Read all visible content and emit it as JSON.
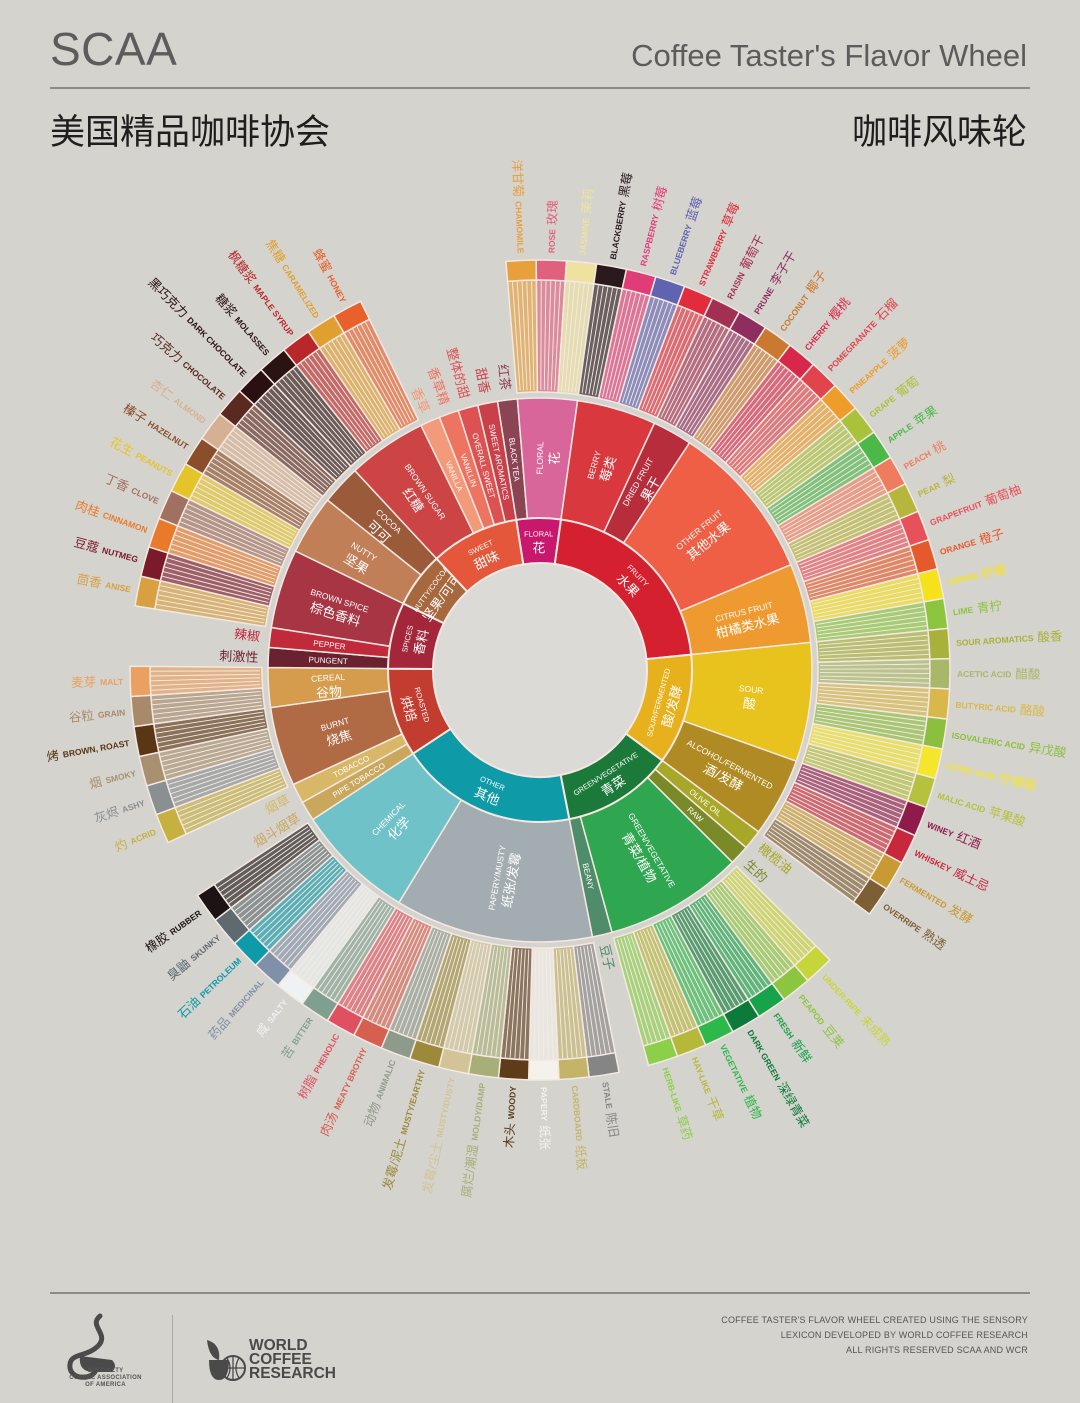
{
  "header": {
    "title_en": "SCAA",
    "subtitle_en": "Coffee Taster's Flavor Wheel",
    "title_zh": "美国精品咖啡协会",
    "subtitle_zh": "咖啡风味轮"
  },
  "footer": {
    "credit": [
      "COFFEE TASTER'S FLAVOR WHEEL CREATED USING THE SENSORY",
      "LEXICON DEVELOPED BY WORLD COFFEE RESEARCH",
      "ALL RIGHTS RESERVED SCAA AND WCR"
    ],
    "sca_logo": [
      "SPECIALTY",
      "COFFEE ASSOCIATION",
      "OF AMERICA"
    ],
    "wcr_logo": [
      "WORLD",
      "COFFEE",
      "RESEARCH"
    ]
  },
  "colors": {
    "background": "#d5d3ce",
    "center": "#dcdad6",
    "separator": "#f4e8e2"
  },
  "wheel": {
    "categories": [
      {
        "en": "FLORAL",
        "zh": "花",
        "c": "#c8176d",
        "subs": [
          {
            "en": "BLACK TEA",
            "zh": "红茶",
            "c": "#8a4454",
            "leaves": []
          },
          {
            "en": "FLORAL",
            "zh": "花",
            "c": "#d9669a",
            "leaves": [
              {
                "en": "CHAMOMILE",
                "zh": "洋甘菊",
                "c": "#e8a03c"
              },
              {
                "en": "ROSE",
                "zh": "玫瑰",
                "c": "#e0607e"
              },
              {
                "en": "JASMINE",
                "zh": "茉莉",
                "c": "#efe2a0"
              }
            ]
          }
        ]
      },
      {
        "en": "FRUITY",
        "zh": "水果",
        "c": "#d4202f",
        "subs": [
          {
            "en": "BERRY",
            "zh": "莓类",
            "c": "#d8383e",
            "leaves": [
              {
                "en": "BLACKBERRY",
                "zh": "黑莓",
                "c": "#2a1a1e"
              },
              {
                "en": "RASPBERRY",
                "zh": "树莓",
                "c": "#e03c78"
              },
              {
                "en": "BLUEBERRY",
                "zh": "蓝莓",
                "c": "#5f63b0"
              },
              {
                "en": "STRAWBERRY",
                "zh": "草莓",
                "c": "#e02c3c"
              }
            ]
          },
          {
            "en": "DRIED FRUIT",
            "zh": "果干",
            "c": "#b72d3b",
            "leaves": [
              {
                "en": "RAISIN",
                "zh": "葡萄干",
                "c": "#a23052"
              },
              {
                "en": "PRUNE",
                "zh": "李子干",
                "c": "#8e2e5e"
              }
            ]
          },
          {
            "en": "OTHER FRUIT",
            "zh": "其他水果",
            "c": "#ee5f45",
            "leaves": [
              {
                "en": "COCONUT",
                "zh": "椰子",
                "c": "#c97a30"
              },
              {
                "en": "CHERRY",
                "zh": "樱桃",
                "c": "#d8284a"
              },
              {
                "en": "POMEGRANATE",
                "zh": "石榴",
                "c": "#e0444c"
              },
              {
                "en": "PINEAPPLE",
                "zh": "菠萝",
                "c": "#ee9c2a"
              },
              {
                "en": "GRAPE",
                "zh": "葡萄",
                "c": "#a9c23a"
              },
              {
                "en": "APPLE",
                "zh": "苹果",
                "c": "#4cb848"
              },
              {
                "en": "PEACH",
                "zh": "桃",
                "c": "#f07c60"
              },
              {
                "en": "PEAR",
                "zh": "梨",
                "c": "#b7b63c"
              }
            ]
          },
          {
            "en": "CITRUS FRUIT",
            "zh": "柑橘类水果",
            "c": "#ef9a30",
            "leaves": [
              {
                "en": "GRAPEFRUIT",
                "zh": "葡萄柚",
                "c": "#e8505a"
              },
              {
                "en": "ORANGE",
                "zh": "橙子",
                "c": "#e45a2c"
              },
              {
                "en": "LEMON",
                "zh": "柠檬",
                "c": "#f6e21a"
              },
              {
                "en": "LIME",
                "zh": "青柠",
                "c": "#8cc63f"
              }
            ]
          }
        ]
      },
      {
        "en": "SOUR/FERMENTED",
        "zh": "酸/发酵",
        "c": "#e6b11c",
        "subs": [
          {
            "en": "SOUR",
            "zh": "酸",
            "c": "#e8c21d",
            "leaves": [
              {
                "en": "SOUR AROMATICS",
                "zh": "酸香",
                "c": "#a8b23a"
              },
              {
                "en": "ACETIC ACID",
                "zh": "醋酸",
                "c": "#a9b868"
              },
              {
                "en": "BUTYRIC ACID",
                "zh": "酪酸",
                "c": "#d8b84a"
              },
              {
                "en": "ISOVALERIC ACID",
                "zh": "异戊酸",
                "c": "#8cbf3e"
              },
              {
                "en": "CITRIC ACID",
                "zh": "柠檬酸",
                "c": "#f4e62a"
              },
              {
                "en": "MALIC ACID",
                "zh": "苹果酸",
                "c": "#b4c23e"
              }
            ]
          },
          {
            "en": "ALCOHOL/FERMENTED",
            "zh": "酒/发酵",
            "c": "#b08a22",
            "leaves": [
              {
                "en": "WINEY",
                "zh": "红酒",
                "c": "#8e1b4c"
              },
              {
                "en": "WHISKEY",
                "zh": "威士忌",
                "c": "#c8283c"
              },
              {
                "en": "FERMENTED",
                "zh": "发酵",
                "c": "#c89a32"
              },
              {
                "en": "OVERRIPE",
                "zh": "熟透",
                "c": "#7d5f36"
              }
            ]
          }
        ]
      },
      {
        "en": "GREEN/VEGETATIVE",
        "zh": "青菜",
        "c": "#1b7a3a",
        "subs": [
          {
            "en": "OLIVE OIL",
            "zh": "橄榄油",
            "c": "#a8a828",
            "leaves": []
          },
          {
            "en": "RAW",
            "zh": "生的",
            "c": "#7a8a28",
            "leaves": []
          },
          {
            "en": "GREEN/VEGETATIVE",
            "zh": "青菜/植物",
            "c": "#2fa650",
            "leaves": [
              {
                "en": "UNDER-RIPE",
                "zh": "未成熟",
                "c": "#c6d63a"
              },
              {
                "en": "PEAPOD",
                "zh": "豆荚",
                "c": "#8cc63f"
              },
              {
                "en": "FRESH",
                "zh": "新鲜",
                "c": "#16a34a"
              },
              {
                "en": "DARK GREEN",
                "zh": "深绿青菜",
                "c": "#0c7a3a"
              },
              {
                "en": "VEGETATIVE",
                "zh": "植物",
                "c": "#2cb84a"
              },
              {
                "en": "HAY-LIKE",
                "zh": "干草",
                "c": "#b6b83a"
              },
              {
                "en": "HERB-LIKE",
                "zh": "草药",
                "c": "#8cd04a"
              }
            ]
          },
          {
            "en": "BEANY",
            "zh": "豆子",
            "c": "#4e8c6a",
            "leaves": []
          }
        ]
      },
      {
        "en": "OTHER",
        "zh": "其他",
        "c": "#0e9aa7",
        "subs": [
          {
            "en": "PAPERY/MUSTY",
            "zh": "纸张/发霉",
            "c": "#a3acb0",
            "leaves": [
              {
                "en": "STALE",
                "zh": "陈旧",
                "c": "#858585"
              },
              {
                "en": "CARDBOARD",
                "zh": "纸板",
                "c": "#c4b46a"
              },
              {
                "en": "PAPERY",
                "zh": "纸张",
                "c": "#f4f2ea"
              },
              {
                "en": "WOODY",
                "zh": "木头",
                "c": "#5e3c1a"
              },
              {
                "en": "MOLDY/DAMP",
                "zh": "腐烂/潮湿",
                "c": "#a8ae78"
              },
              {
                "en": "MUSTY/DUSTY",
                "zh": "发霉/尘土",
                "c": "#d2c496"
              },
              {
                "en": "MUSTY/EARTHY",
                "zh": "发霉/泥土",
                "c": "#9c8a3a"
              },
              {
                "en": "ANIMALIC",
                "zh": "动物",
                "c": "#8e9a8a"
              },
              {
                "en": "MEATY BROTHY",
                "zh": "肉汤",
                "c": "#d66050"
              },
              {
                "en": "PHENOLIC",
                "zh": "树脂",
                "c": "#e05060"
              }
            ]
          },
          {
            "en": "CHEMICAL",
            "zh": "化学",
            "c": "#6fc2c8",
            "leaves": [
              {
                "en": "BITTER",
                "zh": "苦",
                "c": "#7fa090"
              },
              {
                "en": "SALTY",
                "zh": "咸",
                "c": "#eef2f2"
              },
              {
                "en": "MEDICINAL",
                "zh": "药品",
                "c": "#8090a8"
              },
              {
                "en": "PETROLEUM",
                "zh": "石油",
                "c": "#0f9aaa"
              },
              {
                "en": "SKUNKY",
                "zh": "臭鼬",
                "c": "#5e6a70"
              },
              {
                "en": "RUBBER",
                "zh": "橡胶",
                "c": "#1c1414"
              }
            ]
          }
        ]
      },
      {
        "en": "ROASTED",
        "zh": "烘焙",
        "c": "#c23c30",
        "subs": [
          {
            "en": "PIPE TOBACCO",
            "zh": "烟斗烟草",
            "c": "#c9a85e",
            "leaves": []
          },
          {
            "en": "TOBACCO",
            "zh": "烟草",
            "c": "#d8b868",
            "leaves": []
          },
          {
            "en": "BURNT",
            "zh": "烧焦",
            "c": "#b06a44",
            "leaves": [
              {
                "en": "ACRID",
                "zh": "灼",
                "c": "#c6b040"
              },
              {
                "en": "ASHY",
                "zh": "灰烬",
                "c": "#8a8f92"
              },
              {
                "en": "SMOKY",
                "zh": "烟",
                "c": "#a89070"
              },
              {
                "en": "BROWN, ROAST",
                "zh": "烤",
                "c": "#5a3614"
              }
            ]
          },
          {
            "en": "CEREAL",
            "zh": "谷物",
            "c": "#d49c4c",
            "leaves": [
              {
                "en": "GRAIN",
                "zh": "谷粒",
                "c": "#a88a6a"
              },
              {
                "en": "MALT",
                "zh": "麦芽",
                "c": "#eaa060"
              }
            ]
          }
        ]
      },
      {
        "en": "SPICES",
        "zh": "香料",
        "c": "#a3263a",
        "subs": [
          {
            "en": "PUNGENT",
            "zh": "刺激性",
            "c": "#6a2230",
            "leaves": []
          },
          {
            "en": "PEPPER",
            "zh": "辣椒",
            "c": "#c02a3a",
            "leaves": []
          },
          {
            "en": "BROWN SPICE",
            "zh": "棕色香料",
            "c": "#a83543",
            "leaves": [
              {
                "en": "ANISE",
                "zh": "茴香",
                "c": "#d8a040"
              },
              {
                "en": "NUTMEG",
                "zh": "豆蔻",
                "c": "#7a1a2a"
              },
              {
                "en": "CINNAMON",
                "zh": "肉桂",
                "c": "#e97a2a"
              },
              {
                "en": "CLOVE",
                "zh": "丁香",
                "c": "#a07060"
              }
            ]
          }
        ]
      },
      {
        "en": "NUTTY/COCOA",
        "zh": "坚果/可可",
        "c": "#a8683e",
        "subs": [
          {
            "en": "NUTTY",
            "zh": "坚果",
            "c": "#c17f58",
            "leaves": [
              {
                "en": "PEANUTS",
                "zh": "花生",
                "c": "#e3c52a"
              },
              {
                "en": "HAZELNUT",
                "zh": "榛子",
                "c": "#8a4e2a"
              },
              {
                "en": "ALMOND",
                "zh": "杏仁",
                "c": "#d6b092"
              }
            ]
          },
          {
            "en": "COCOA",
            "zh": "可可",
            "c": "#9b5a3a",
            "leaves": [
              {
                "en": "CHOCOLATE",
                "zh": "巧克力",
                "c": "#5a2a20"
              },
              {
                "en": "DARK CHOCOLATE",
                "zh": "黑巧克力",
                "c": "#2a1010"
              }
            ]
          }
        ]
      },
      {
        "en": "SWEET",
        "zh": "甜味",
        "c": "#e4573a",
        "subs": [
          {
            "en": "BROWN SUGAR",
            "zh": "红糖",
            "c": "#cc4444",
            "leaves": [
              {
                "en": "MOLASSES",
                "zh": "糖浆",
                "c": "#2a1412"
              },
              {
                "en": "MAPLE SYRUP",
                "zh": "枫糖浆",
                "c": "#b8282a"
              },
              {
                "en": "CARAMELIZED",
                "zh": "焦糖",
                "c": "#e0a030"
              },
              {
                "en": "HONEY",
                "zh": "蜂蜜",
                "c": "#e8602a"
              }
            ]
          },
          {
            "en": "VANILLA",
            "zh": "香草",
            "c": "#f29a7a",
            "leaves": []
          },
          {
            "en": "VANILLIN",
            "zh": "香草精",
            "c": "#ee7462",
            "leaves": []
          },
          {
            "en": "OVERALL SWEET",
            "zh": "整体的甜",
            "c": "#dc5252",
            "leaves": []
          },
          {
            "en": "SWEET AROMATICS",
            "zh": "甜香",
            "c": "#c8404a",
            "leaves": []
          }
        ]
      }
    ]
  }
}
